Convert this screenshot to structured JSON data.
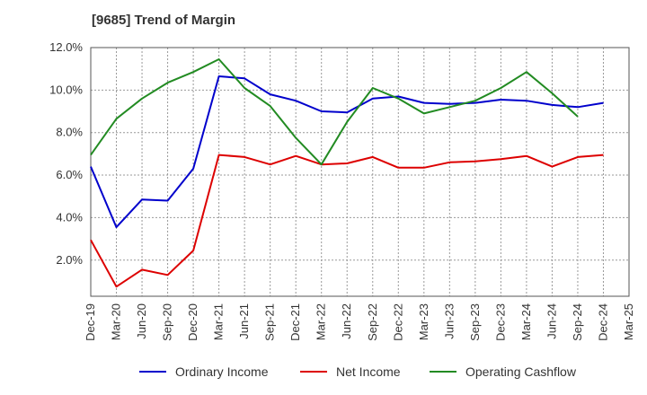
{
  "chart_data": {
    "type": "line",
    "title": "[9685]  Trend of Margin",
    "xlabel": "",
    "ylabel": "",
    "x": [
      "Dec-19",
      "Mar-20",
      "Jun-20",
      "Sep-20",
      "Dec-20",
      "Mar-21",
      "Jun-21",
      "Sep-21",
      "Dec-21",
      "Mar-22",
      "Jun-22",
      "Sep-22",
      "Dec-22",
      "Mar-23",
      "Jun-23",
      "Sep-23",
      "Dec-23",
      "Mar-24",
      "Jun-24",
      "Sep-24",
      "Dec-24",
      "Mar-25"
    ],
    "ylim": [
      0.3,
      12.0
    ],
    "yticks": [
      2.0,
      4.0,
      6.0,
      8.0,
      10.0,
      12.0
    ],
    "ytick_labels": [
      "2.0%",
      "4.0%",
      "6.0%",
      "8.0%",
      "10.0%",
      "12.0%"
    ],
    "grid": true,
    "legend_position": "bottom",
    "series": [
      {
        "name": "Ordinary Income",
        "color": "#0000cc",
        "values": [
          6.4,
          3.55,
          4.85,
          4.8,
          6.3,
          10.65,
          10.55,
          9.8,
          9.5,
          9.0,
          8.95,
          9.6,
          9.7,
          9.4,
          9.35,
          9.4,
          9.55,
          9.5,
          9.3,
          9.2,
          9.4,
          null
        ]
      },
      {
        "name": "Net Income",
        "color": "#dd0000",
        "values": [
          2.95,
          0.75,
          1.55,
          1.3,
          2.45,
          6.95,
          6.85,
          6.5,
          6.9,
          6.5,
          6.55,
          6.85,
          6.35,
          6.35,
          6.6,
          6.65,
          6.75,
          6.9,
          6.4,
          6.85,
          6.95,
          null
        ]
      },
      {
        "name": "Operating Cashflow",
        "color": "#228b22",
        "values": [
          6.95,
          8.65,
          9.6,
          10.35,
          10.85,
          11.45,
          10.1,
          9.25,
          7.75,
          6.5,
          8.5,
          10.1,
          9.6,
          8.9,
          9.2,
          9.5,
          10.1,
          10.85,
          9.85,
          8.75,
          null,
          null
        ]
      }
    ]
  }
}
